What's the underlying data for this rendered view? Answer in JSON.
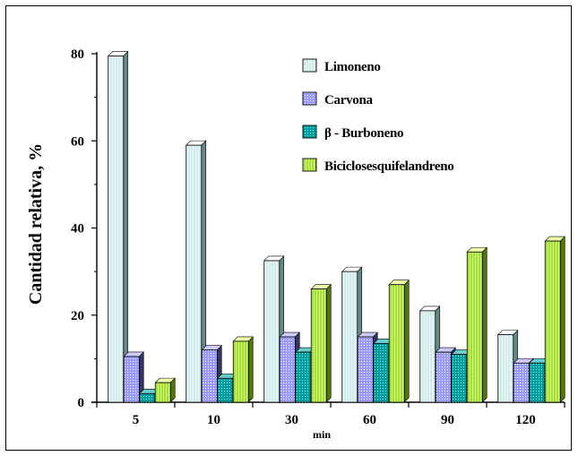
{
  "chart_data": {
    "type": "bar",
    "title": "",
    "xlabel": "min",
    "ylabel": "Cantidad relativa, %",
    "ylim": [
      0,
      80
    ],
    "yticks": [
      "0",
      "20",
      "40",
      "60",
      "80"
    ],
    "categories": [
      "5",
      "10",
      "30",
      "60",
      "90",
      "120"
    ],
    "legend_position": "top-right",
    "grid": false,
    "series": [
      {
        "name": "Limoneno",
        "color": "#e8f6f6",
        "pattern": "vertical-lines",
        "values": [
          79.5,
          59,
          32.5,
          30,
          21,
          15.5
        ]
      },
      {
        "name": "Carvona",
        "color": "#9999ff",
        "pattern": "dots",
        "values": [
          10.5,
          12,
          15,
          15,
          11.5,
          9
        ]
      },
      {
        "name": "β - Burboneno",
        "color": "#009999",
        "pattern": "dots",
        "values": [
          2,
          5.5,
          11.5,
          13.5,
          11,
          9
        ]
      },
      {
        "name": "Biciclosesquifelandreno",
        "color": "#ccff66",
        "pattern": "vertical-lines",
        "values": [
          4.5,
          14,
          26,
          27,
          34.5,
          37
        ]
      }
    ]
  }
}
